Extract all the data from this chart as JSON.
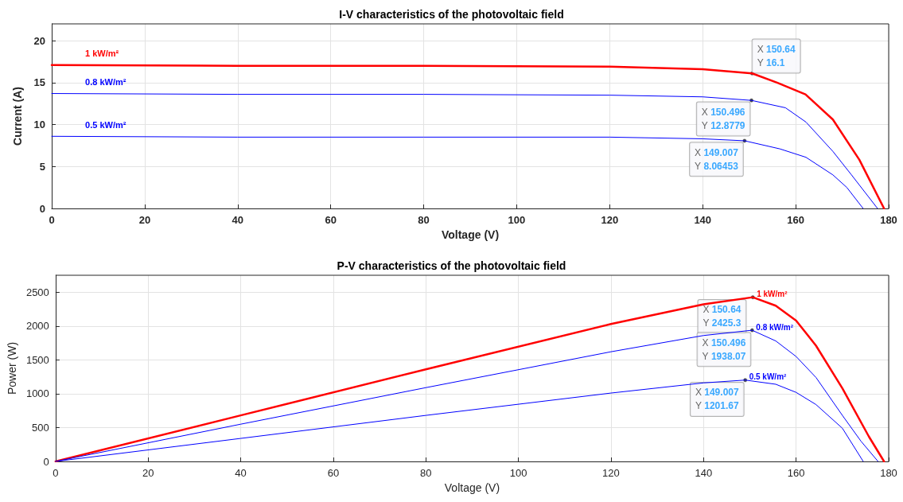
{
  "chart_data": [
    {
      "type": "line",
      "title": "I-V characteristics of the photovoltaic field",
      "xlabel": "Voltage (V)",
      "ylabel": "Current (A)",
      "xlim": [
        0,
        180
      ],
      "xticks": [
        0,
        20,
        40,
        60,
        80,
        100,
        120,
        140,
        160,
        180
      ],
      "ylim": [
        0,
        22
      ],
      "yticks": [
        0,
        5,
        10,
        15,
        20
      ],
      "grid": true,
      "legend": false,
      "marker": "none",
      "line_style": "solid",
      "series": [
        {
          "name": "1 kW/m²",
          "color": "#ff0000",
          "x": [
            0,
            40,
            80,
            120,
            140,
            150.64,
            156,
            162.1,
            168,
            173.7,
            179
          ],
          "values": [
            17.1,
            17.0,
            17.0,
            16.9,
            16.6,
            16.1,
            15.0,
            13.6,
            10.6,
            5.8,
            0
          ]
        },
        {
          "name": "0.8 kW/m²",
          "color": "#0000ff",
          "x": [
            0,
            40,
            80,
            120,
            140,
            150.496,
            157.8,
            162.2,
            168,
            172,
            177.6
          ],
          "values": [
            13.7,
            13.6,
            13.6,
            13.5,
            13.3,
            12.8779,
            12.0,
            10.3,
            6.8,
            4.0,
            0
          ]
        },
        {
          "name": "0.5 kW/m²",
          "color": "#0000ff",
          "x": [
            0,
            40,
            80,
            120,
            140,
            149.007,
            156.6,
            162.2,
            168,
            171,
            174.5
          ],
          "values": [
            8.6,
            8.5,
            8.5,
            8.5,
            8.3,
            8.06453,
            7.1,
            6.1,
            4.0,
            2.5,
            0
          ]
        }
      ],
      "annotations": [
        {
          "text": "X 150.64\nY 16.1",
          "x": 150.64,
          "y": 16.1
        },
        {
          "text": "X 150.496\nY 12.8779",
          "x": 150.496,
          "y": 12.8779
        },
        {
          "text": "X 149.007\nY 8.06453",
          "x": 149.007,
          "y": 8.06453
        }
      ]
    },
    {
      "type": "line",
      "title": "P-V characteristics of the photovoltaic field",
      "xlabel": "Voltage (V)",
      "ylabel": "Power (W)",
      "xlim": [
        0,
        180
      ],
      "xticks": [
        0,
        20,
        40,
        60,
        80,
        100,
        120,
        140,
        160,
        180
      ],
      "ylim": [
        0,
        2750
      ],
      "yticks": [
        0,
        500,
        1000,
        1500,
        2000,
        2500
      ],
      "grid": true,
      "legend": false,
      "marker": "none",
      "line_style": "solid",
      "series": [
        {
          "name": "1 kW/m²",
          "color": "#ff0000",
          "x": [
            0,
            40,
            80,
            120,
            140,
            150.64,
            155.6,
            160,
            164.3,
            170,
            175.7,
            179
          ],
          "values": [
            0,
            680,
            1360,
            2030,
            2320,
            2425.3,
            2300,
            2080,
            1710,
            1080,
            370,
            0
          ]
        },
        {
          "name": "0.8 kW/m²",
          "color": "#0000ff",
          "x": [
            0,
            40,
            80,
            120,
            140,
            150.496,
            155.6,
            160,
            164.3,
            170,
            174,
            177.7
          ],
          "values": [
            0,
            550,
            1090,
            1620,
            1860,
            1938.07,
            1780,
            1550,
            1240,
            680,
            300,
            0
          ]
        },
        {
          "name": "0.5 kW/m²",
          "color": "#0000ff",
          "x": [
            0,
            40,
            80,
            120,
            140,
            149.007,
            155.6,
            160,
            164.3,
            170,
            174.5
          ],
          "values": [
            0,
            340,
            680,
            1010,
            1160,
            1201.67,
            1140,
            1020,
            840,
            490,
            0
          ]
        }
      ],
      "annotations": [
        {
          "text": "X 150.64\nY 2425.3",
          "x": 150.64,
          "y": 2425.3
        },
        {
          "text": "X 150.496\nY 1938.07",
          "x": 150.496,
          "y": 1938.07
        },
        {
          "text": "X 149.007\nY 1201.67",
          "x": 149.007,
          "y": 1201.67
        }
      ]
    }
  ]
}
